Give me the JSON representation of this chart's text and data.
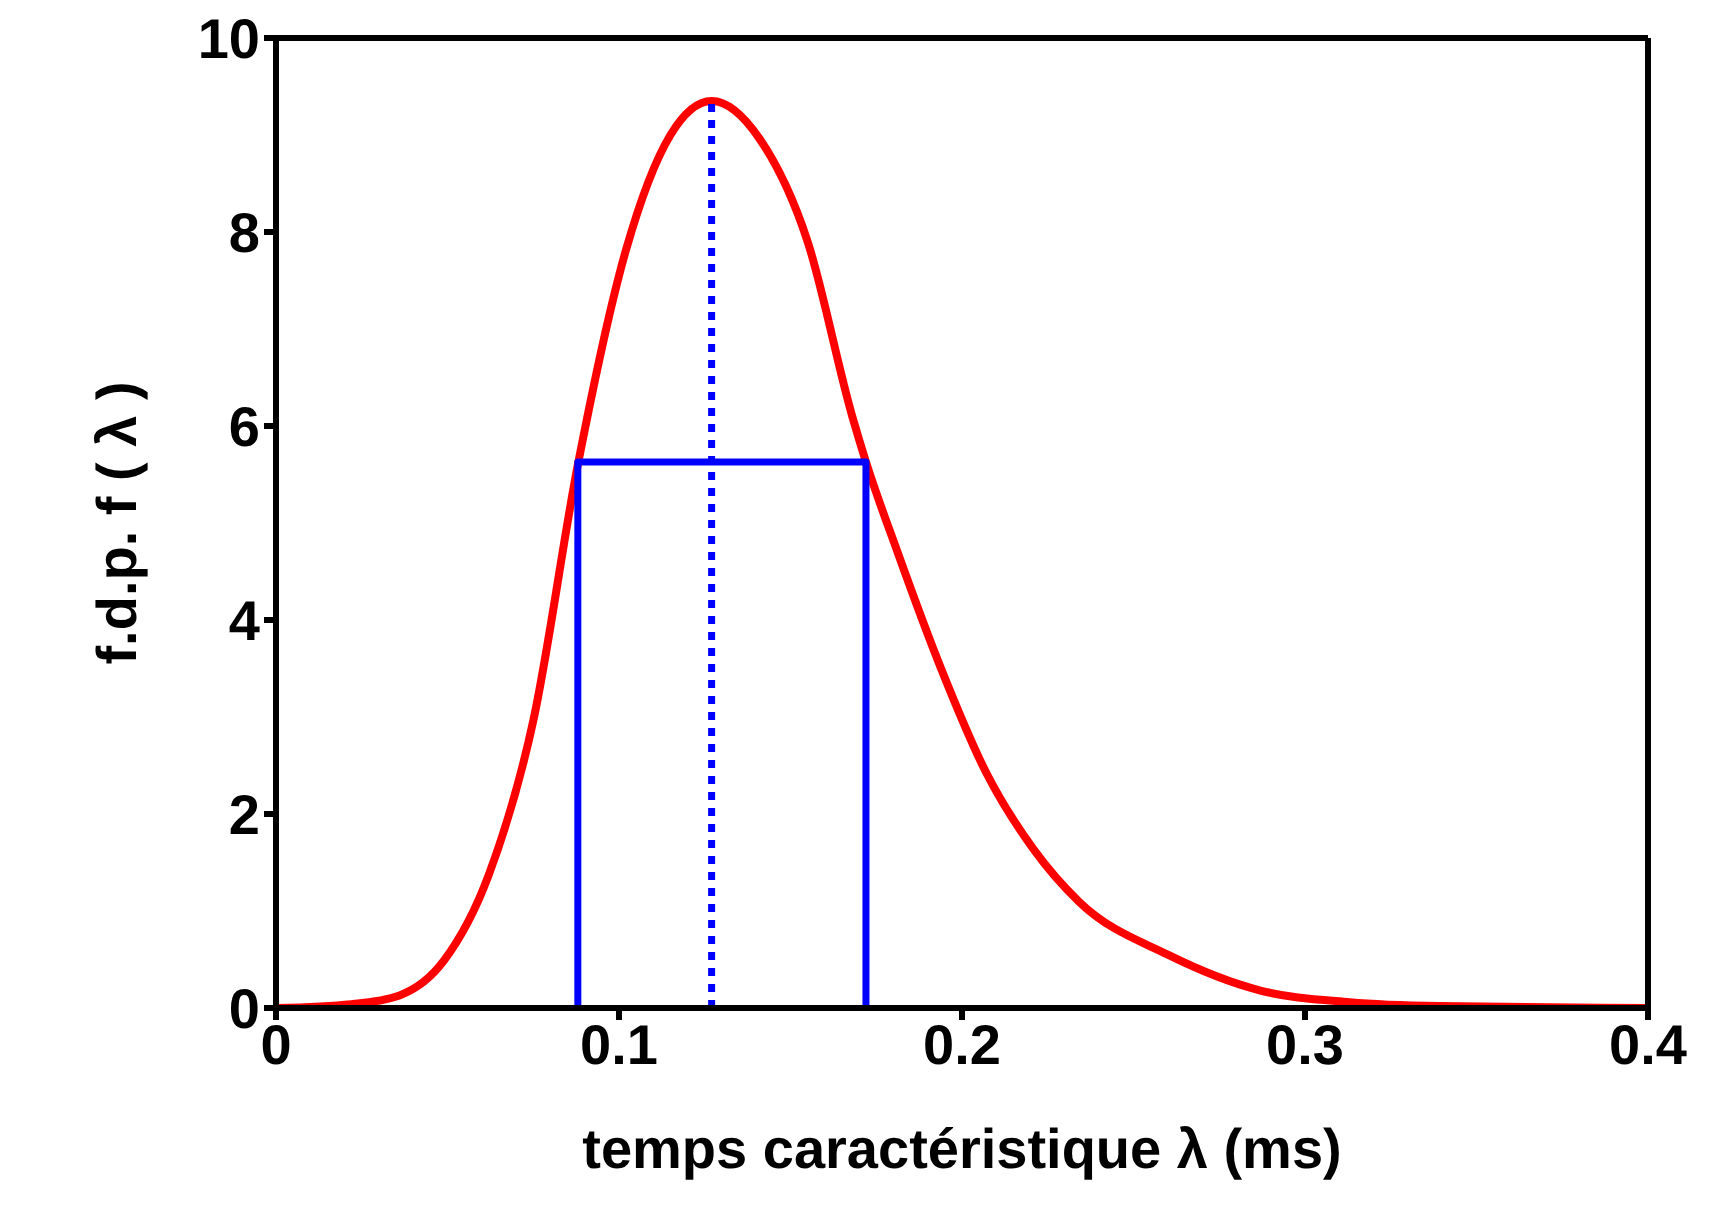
{
  "chart_data": {
    "type": "line",
    "xlabel": "temps caractéristique λ (ms)",
    "ylabel": "f.d.p.   f ( λ )",
    "xlim": [
      0,
      0.4
    ],
    "xticks": [
      0,
      0.1,
      0.2,
      0.3,
      0.4
    ],
    "ylim": [
      0,
      10
    ],
    "yticks": [
      0,
      2,
      4,
      6,
      8,
      10
    ],
    "marker": "none",
    "series": [
      {
        "color": "#ff0000",
        "line_style": "solid",
        "x": [
          0,
          0.022,
          0.036,
          0.049,
          0.062,
          0.075,
          0.088,
          0.102,
          0.115,
          0.127,
          0.141,
          0.155,
          0.168,
          0.172,
          0.181,
          0.194,
          0.207,
          0.221,
          0.234,
          0.26,
          0.287,
          0.313,
          0.339,
          0.4
        ],
        "values": [
          0,
          0.04,
          0.13,
          0.49,
          1.37,
          2.96,
          5.6,
          7.81,
          9.0,
          9.35,
          8.96,
          7.9,
          6.1,
          5.63,
          4.72,
          3.49,
          2.43,
          1.63,
          1.1,
          0.55,
          0.18,
          0.06,
          0.02,
          0
        ]
      },
      {
        "color": "#0000ff",
        "line_style": "solid",
        "x": [
          0.088,
          0.088,
          0.172,
          0.172
        ],
        "values": [
          0,
          5.63,
          5.63,
          0
        ]
      },
      {
        "color": "#0000ff",
        "line_style": "dotted",
        "x": [
          0.127,
          0.127
        ],
        "values": [
          0,
          9.35
        ]
      }
    ]
  }
}
